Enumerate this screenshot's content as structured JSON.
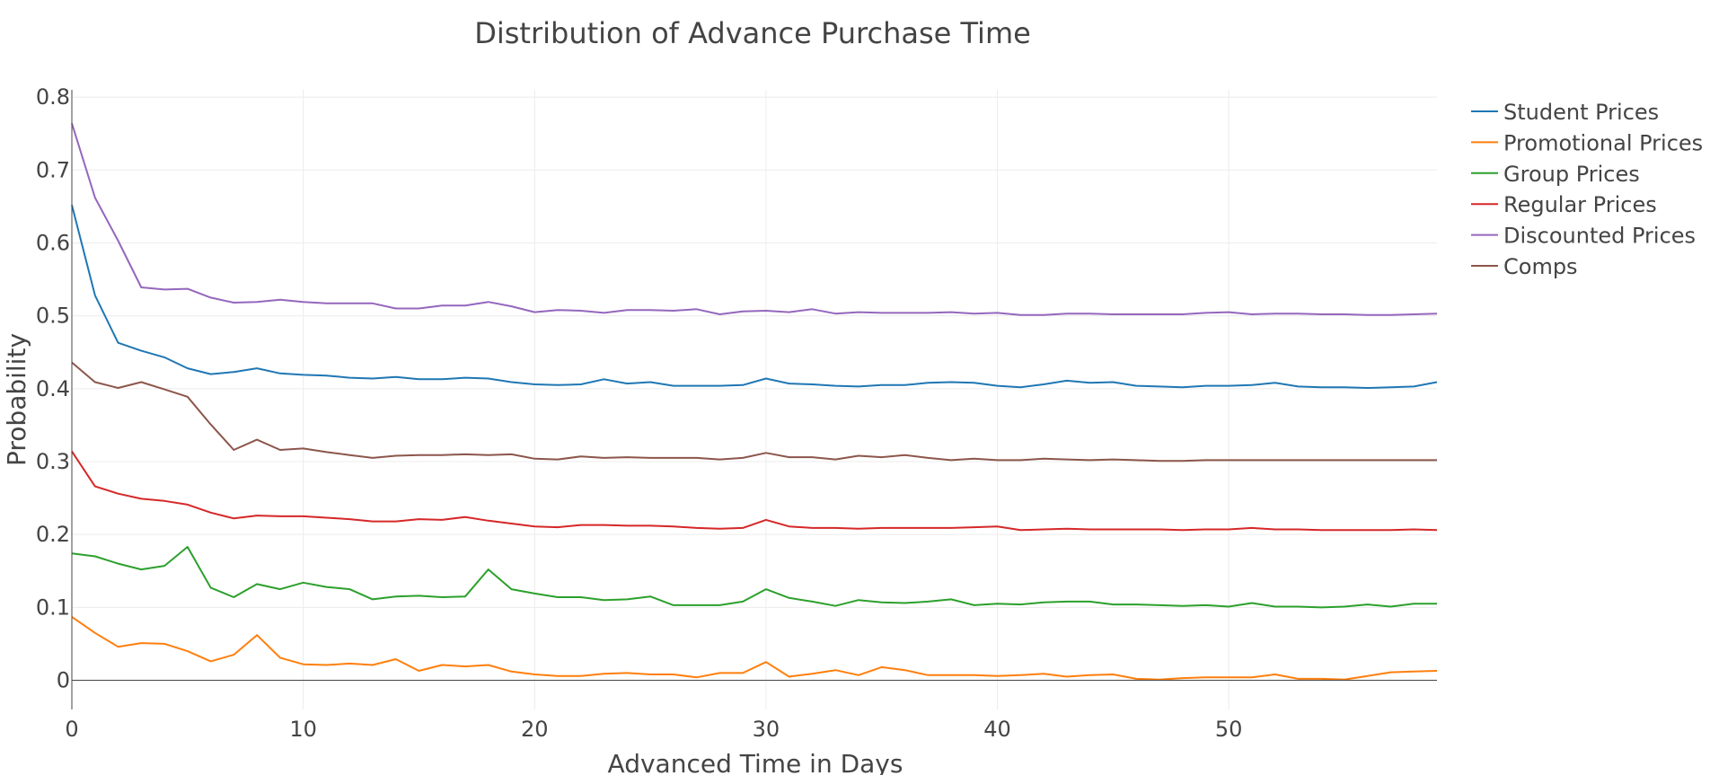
{
  "chart_data": {
    "type": "line",
    "title": "Distribution of Advance Purchase Time",
    "xlabel": "Advanced Time in Days",
    "ylabel": "Probability",
    "xlim": [
      0,
      59
    ],
    "ylim": [
      -0.04,
      0.81
    ],
    "x_ticks": [
      0,
      10,
      20,
      30,
      40,
      50
    ],
    "y_ticks": [
      0,
      0.1,
      0.2,
      0.3,
      0.4,
      0.5,
      0.6,
      0.7,
      0.8
    ],
    "y_tick_labels": [
      "0",
      "0.1",
      "0.2",
      "0.3",
      "0.4",
      "0.5",
      "0.6",
      "0.7",
      "0.8"
    ],
    "grid": true,
    "legend_position": "top-right",
    "x": [
      0,
      1,
      2,
      3,
      4,
      5,
      6,
      7,
      8,
      9,
      10,
      11,
      12,
      13,
      14,
      15,
      16,
      17,
      18,
      19,
      20,
      21,
      22,
      23,
      24,
      25,
      26,
      27,
      28,
      29,
      30,
      31,
      32,
      33,
      34,
      35,
      36,
      37,
      38,
      39,
      40,
      41,
      42,
      43,
      44,
      45,
      46,
      47,
      48,
      49,
      50,
      51,
      52,
      53,
      54,
      55,
      56,
      57,
      58,
      59
    ],
    "series": [
      {
        "name": "Student Prices",
        "color": "#1f77b4",
        "values": [
          0.652,
          0.528,
          0.463,
          0.452,
          0.443,
          0.428,
          0.42,
          0.423,
          0.428,
          0.421,
          0.419,
          0.418,
          0.415,
          0.414,
          0.416,
          0.413,
          0.413,
          0.415,
          0.414,
          0.409,
          0.406,
          0.405,
          0.406,
          0.413,
          0.407,
          0.409,
          0.404,
          0.404,
          0.404,
          0.405,
          0.414,
          0.407,
          0.406,
          0.404,
          0.403,
          0.405,
          0.405,
          0.408,
          0.409,
          0.408,
          0.404,
          0.402,
          0.406,
          0.411,
          0.408,
          0.409,
          0.404,
          0.403,
          0.402,
          0.404,
          0.404,
          0.405,
          0.408,
          0.403,
          0.402,
          0.402,
          0.401,
          0.402,
          0.403,
          0.409
        ]
      },
      {
        "name": "Promotional Prices",
        "color": "#ff7f0e",
        "values": [
          0.087,
          0.065,
          0.046,
          0.051,
          0.05,
          0.04,
          0.026,
          0.035,
          0.062,
          0.031,
          0.022,
          0.021,
          0.023,
          0.021,
          0.029,
          0.013,
          0.021,
          0.019,
          0.021,
          0.012,
          0.008,
          0.006,
          0.006,
          0.009,
          0.01,
          0.008,
          0.008,
          0.004,
          0.01,
          0.01,
          0.025,
          0.005,
          0.009,
          0.014,
          0.007,
          0.018,
          0.014,
          0.007,
          0.007,
          0.007,
          0.006,
          0.007,
          0.009,
          0.005,
          0.007,
          0.008,
          0.002,
          0.001,
          0.003,
          0.004,
          0.004,
          0.004,
          0.008,
          0.002,
          0.002,
          0.001,
          0.006,
          0.011,
          0.012,
          0.013
        ]
      },
      {
        "name": "Group Prices",
        "color": "#2ca02c",
        "values": [
          0.174,
          0.17,
          0.16,
          0.152,
          0.157,
          0.183,
          0.127,
          0.114,
          0.132,
          0.125,
          0.134,
          0.128,
          0.125,
          0.111,
          0.115,
          0.116,
          0.114,
          0.115,
          0.152,
          0.125,
          0.119,
          0.114,
          0.114,
          0.11,
          0.111,
          0.115,
          0.103,
          0.103,
          0.103,
          0.108,
          0.125,
          0.113,
          0.108,
          0.102,
          0.11,
          0.107,
          0.106,
          0.108,
          0.111,
          0.103,
          0.105,
          0.104,
          0.107,
          0.108,
          0.108,
          0.104,
          0.104,
          0.103,
          0.102,
          0.103,
          0.101,
          0.106,
          0.101,
          0.101,
          0.1,
          0.101,
          0.104,
          0.101,
          0.105,
          0.105
        ]
      },
      {
        "name": "Regular Prices",
        "color": "#d62728",
        "values": [
          0.314,
          0.266,
          0.256,
          0.249,
          0.246,
          0.241,
          0.23,
          0.222,
          0.226,
          0.225,
          0.225,
          0.223,
          0.221,
          0.218,
          0.218,
          0.221,
          0.22,
          0.224,
          0.219,
          0.215,
          0.211,
          0.21,
          0.213,
          0.213,
          0.212,
          0.212,
          0.211,
          0.209,
          0.208,
          0.209,
          0.22,
          0.211,
          0.209,
          0.209,
          0.208,
          0.209,
          0.209,
          0.209,
          0.209,
          0.21,
          0.211,
          0.206,
          0.207,
          0.208,
          0.207,
          0.207,
          0.207,
          0.207,
          0.206,
          0.207,
          0.207,
          0.209,
          0.207,
          0.207,
          0.206,
          0.206,
          0.206,
          0.206,
          0.207,
          0.206
        ]
      },
      {
        "name": "Discounted Prices",
        "color": "#9467bd",
        "values": [
          0.764,
          0.662,
          0.603,
          0.539,
          0.536,
          0.537,
          0.525,
          0.518,
          0.519,
          0.522,
          0.519,
          0.517,
          0.517,
          0.517,
          0.51,
          0.51,
          0.514,
          0.514,
          0.519,
          0.513,
          0.505,
          0.508,
          0.507,
          0.504,
          0.508,
          0.508,
          0.507,
          0.509,
          0.502,
          0.506,
          0.507,
          0.505,
          0.509,
          0.503,
          0.505,
          0.504,
          0.504,
          0.504,
          0.505,
          0.503,
          0.504,
          0.501,
          0.501,
          0.503,
          0.503,
          0.502,
          0.502,
          0.502,
          0.502,
          0.504,
          0.505,
          0.502,
          0.503,
          0.503,
          0.502,
          0.502,
          0.501,
          0.501,
          0.502,
          0.503
        ]
      },
      {
        "name": "Comps",
        "color": "#8c564b",
        "values": [
          0.436,
          0.409,
          0.401,
          0.409,
          0.399,
          0.389,
          0.351,
          0.316,
          0.33,
          0.316,
          0.318,
          0.313,
          0.309,
          0.305,
          0.308,
          0.309,
          0.309,
          0.31,
          0.309,
          0.31,
          0.304,
          0.303,
          0.307,
          0.305,
          0.306,
          0.305,
          0.305,
          0.305,
          0.303,
          0.305,
          0.312,
          0.306,
          0.306,
          0.303,
          0.308,
          0.306,
          0.309,
          0.305,
          0.302,
          0.304,
          0.302,
          0.302,
          0.304,
          0.303,
          0.302,
          0.303,
          0.302,
          0.301,
          0.301,
          0.302,
          0.302,
          0.302,
          0.302,
          0.302,
          0.302,
          0.302,
          0.302,
          0.302,
          0.302,
          0.302
        ]
      }
    ]
  }
}
